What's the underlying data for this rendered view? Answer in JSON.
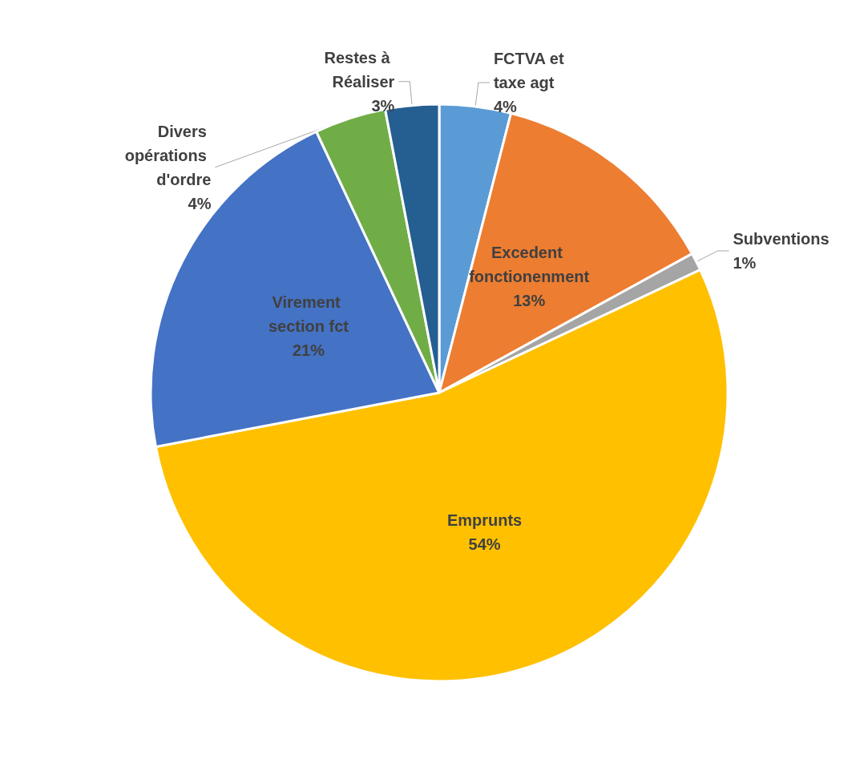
{
  "chart_data": {
    "type": "pie",
    "categories": [
      "FCTVA et taxe agt",
      "Excedent fonctionenment",
      "Subventions",
      "Emprunts",
      "Virement section fct",
      "Divers opérations d'ordre",
      "Restes à Réaliser"
    ],
    "values": [
      4,
      13,
      1,
      54,
      21,
      4,
      3
    ],
    "value_labels": [
      "4%",
      "13%",
      "1%",
      "54%",
      "21%",
      "4%",
      "3%"
    ],
    "colors": [
      "#5b9bd5",
      "#ed7d31",
      "#a5a5a5",
      "#ffc000",
      "#4472c4",
      "#70ad47",
      "#255e91"
    ],
    "legend": false
  }
}
